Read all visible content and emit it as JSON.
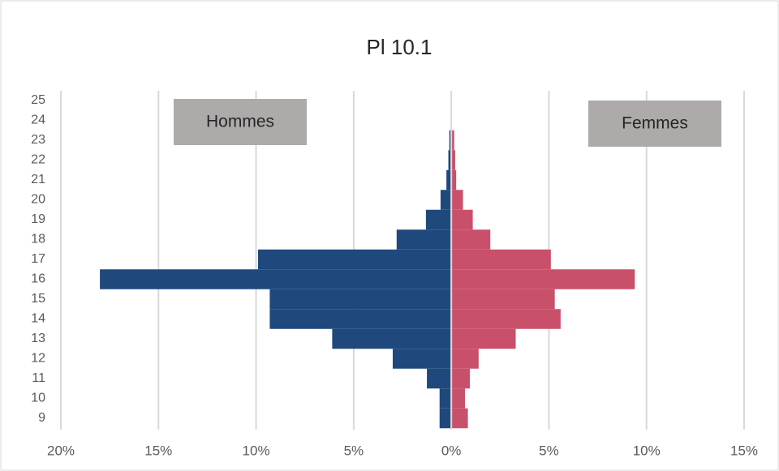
{
  "chart_data": {
    "type": "pyramid",
    "title": "Pl 10.1",
    "categories": [
      "9",
      "10",
      "11",
      "12",
      "13",
      "14",
      "15",
      "16",
      "17",
      "18",
      "19",
      "20",
      "21",
      "22",
      "23",
      "24",
      "25"
    ],
    "series": [
      {
        "name": "Hommes",
        "color": "#1f497d",
        "values": [
          -0.6,
          -0.6,
          -1.25,
          -3.0,
          -6.1,
          -9.3,
          -9.3,
          -18.0,
          -9.9,
          -2.8,
          -1.3,
          -0.55,
          -0.25,
          -0.15,
          -0.1,
          null,
          null
        ]
      },
      {
        "name": "Femmes",
        "color": "#c9506a",
        "values": [
          0.85,
          0.7,
          0.95,
          1.4,
          3.3,
          5.6,
          5.3,
          9.4,
          5.1,
          2.0,
          1.1,
          0.6,
          0.25,
          0.2,
          0.15,
          null,
          null
        ]
      }
    ],
    "xlim": [
      -20,
      15
    ],
    "xticks": [
      {
        "value": -20,
        "label": "20%"
      },
      {
        "value": -15,
        "label": "15%"
      },
      {
        "value": -10,
        "label": "10%"
      },
      {
        "value": -5,
        "label": "5%"
      },
      {
        "value": 0,
        "label": "0%"
      },
      {
        "value": 5,
        "label": "5%"
      },
      {
        "value": 10,
        "label": "10%"
      },
      {
        "value": 15,
        "label": "15%"
      }
    ],
    "grid": true
  }
}
